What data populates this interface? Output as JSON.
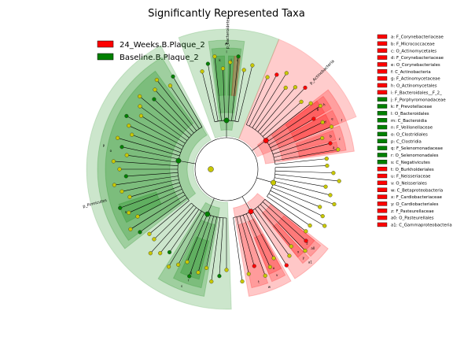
{
  "chart_data": {
    "type": "cladogram",
    "title": "Significantly Represented Taxa",
    "legend": {
      "placement": "top-left",
      "entries": [
        {
          "name": "24_Weeks.B.Plaque_2",
          "color": "#ff0000"
        },
        {
          "name": "Baseline.B.Plaque_2",
          "color": "#008000"
        }
      ]
    },
    "key": [
      {
        "label": "a: F_Corynebacteriaceae",
        "group": "24_Weeks.B.Plaque_2"
      },
      {
        "label": "b: F_Micrococcaceae",
        "group": "24_Weeks.B.Plaque_2"
      },
      {
        "label": "c: O_Actinomycetales",
        "group": "24_Weeks.B.Plaque_2"
      },
      {
        "label": "d: F_Corynebacteriaceae",
        "group": "24_Weeks.B.Plaque_2"
      },
      {
        "label": "e: O_Corynebacteriales",
        "group": "24_Weeks.B.Plaque_2"
      },
      {
        "label": "f: C_Actinobacteria",
        "group": "24_Weeks.B.Plaque_2"
      },
      {
        "label": "g: F_Actinomycetaceae",
        "group": "24_Weeks.B.Plaque_2"
      },
      {
        "label": "h: O_Actinomycetales",
        "group": "24_Weeks.B.Plaque_2"
      },
      {
        "label": "i: F_Bacteroidales__F_2_",
        "group": "24_Weeks.B.Plaque_2"
      },
      {
        "label": "j: F_Porphyromonadaceae",
        "group": "Baseline.B.Plaque_2"
      },
      {
        "label": "k: F_Prevotellaceae",
        "group": "Baseline.B.Plaque_2"
      },
      {
        "label": "l: O_Bacteroidales",
        "group": "Baseline.B.Plaque_2"
      },
      {
        "label": "m: C_Bacteroidia",
        "group": "Baseline.B.Plaque_2"
      },
      {
        "label": "n: F_Veillonellaceae",
        "group": "Baseline.B.Plaque_2"
      },
      {
        "label": "o: O_Clostridiales",
        "group": "Baseline.B.Plaque_2"
      },
      {
        "label": "p: C_Clostridia",
        "group": "Baseline.B.Plaque_2"
      },
      {
        "label": "q: F_Selenomonadaceae",
        "group": "Baseline.B.Plaque_2"
      },
      {
        "label": "r: O_Selenomonadales",
        "group": "Baseline.B.Plaque_2"
      },
      {
        "label": "s: C_Negativicutes",
        "group": "Baseline.B.Plaque_2"
      },
      {
        "label": "t: O_Burkholderiales",
        "group": "24_Weeks.B.Plaque_2"
      },
      {
        "label": "u: F_Neisseriaceae",
        "group": "24_Weeks.B.Plaque_2"
      },
      {
        "label": "v: O_Neisseriales",
        "group": "24_Weeks.B.Plaque_2"
      },
      {
        "label": "w: C_Betaproteobacteria",
        "group": "24_Weeks.B.Plaque_2"
      },
      {
        "label": "x: F_Cardiobacteriaceae",
        "group": "24_Weeks.B.Plaque_2"
      },
      {
        "label": "y: O_Cardiobacteriales",
        "group": "24_Weeks.B.Plaque_2"
      },
      {
        "label": "z: F_Pasteurellaceae",
        "group": "24_Weeks.B.Plaque_2"
      },
      {
        "label": "a0: O_Pasteurellales",
        "group": "24_Weeks.B.Plaque_2"
      },
      {
        "label": "a1: C_Gammaproteobacteria",
        "group": "24_Weeks.B.Plaque_2"
      }
    ],
    "phyla": [
      {
        "label": "p_Bacteroidetes",
        "group": "Baseline.B.Plaque_2",
        "start_deg": -20,
        "end_deg": 22
      },
      {
        "label": "p_Actinobacteria",
        "group": "24_Weeks.B.Plaque_2",
        "start_deg": 22,
        "end_deg": 68
      },
      {
        "label": "p_Firmicutes",
        "group": "Baseline.B.Plaque_2",
        "start_deg": 178,
        "end_deg": 332
      }
    ],
    "clades": [
      {
        "letter": "m",
        "group": "Baseline.B.Plaque_2",
        "start_deg": -8,
        "end_deg": 8,
        "level": 2
      },
      {
        "letter": "l",
        "group": "Baseline.B.Plaque_2",
        "start_deg": -7,
        "end_deg": 7,
        "level": 3
      },
      {
        "letter": "k",
        "group": "Baseline.B.Plaque_2",
        "start_deg": -6,
        "end_deg": -1,
        "level": 4
      },
      {
        "letter": "j",
        "group": "Baseline.B.Plaque_2",
        "start_deg": 1,
        "end_deg": 4,
        "level": 4
      },
      {
        "letter": "i",
        "group": "24_Weeks.B.Plaque_2",
        "start_deg": 4,
        "end_deg": 7,
        "level": 4
      },
      {
        "letter": "f",
        "group": "24_Weeks.B.Plaque_2",
        "start_deg": 52,
        "end_deg": 82,
        "level": 2
      },
      {
        "letter": "h",
        "group": "24_Weeks.B.Plaque_2",
        "start_deg": 53,
        "end_deg": 60,
        "level": 3
      },
      {
        "letter": "g",
        "group": "24_Weeks.B.Plaque_2",
        "start_deg": 53,
        "end_deg": 60,
        "level": 4
      },
      {
        "letter": "e",
        "group": "24_Weeks.B.Plaque_2",
        "start_deg": 61,
        "end_deg": 68,
        "level": 3
      },
      {
        "letter": "d",
        "group": "24_Weeks.B.Plaque_2",
        "start_deg": 61,
        "end_deg": 68,
        "level": 4
      },
      {
        "letter": "c",
        "group": "24_Weeks.B.Plaque_2",
        "start_deg": 69,
        "end_deg": 81,
        "level": 3
      },
      {
        "letter": "b",
        "group": "24_Weeks.B.Plaque_2",
        "start_deg": 70,
        "end_deg": 75,
        "level": 4
      },
      {
        "letter": "a",
        "group": "24_Weeks.B.Plaque_2",
        "start_deg": 76,
        "end_deg": 81,
        "level": 4
      },
      {
        "letter": "a1",
        "group": "24_Weeks.B.Plaque_2",
        "start_deg": 128,
        "end_deg": 148,
        "level": 2
      },
      {
        "letter": "a0",
        "group": "24_Weeks.B.Plaque_2",
        "start_deg": 129,
        "end_deg": 136,
        "level": 3
      },
      {
        "letter": "z",
        "group": "24_Weeks.B.Plaque_2",
        "start_deg": 129,
        "end_deg": 136,
        "level": 4
      },
      {
        "letter": "y",
        "group": "24_Weeks.B.Plaque_2",
        "start_deg": 137,
        "end_deg": 141,
        "level": 3
      },
      {
        "letter": "x",
        "group": "24_Weeks.B.Plaque_2",
        "start_deg": 137,
        "end_deg": 141,
        "level": 4
      },
      {
        "letter": "w",
        "group": "24_Weeks.B.Plaque_2",
        "start_deg": 150,
        "end_deg": 170,
        "level": 2
      },
      {
        "letter": "v",
        "group": "24_Weeks.B.Plaque_2",
        "start_deg": 151,
        "end_deg": 158,
        "level": 3
      },
      {
        "letter": "u",
        "group": "24_Weeks.B.Plaque_2",
        "start_deg": 151,
        "end_deg": 158,
        "level": 4
      },
      {
        "letter": "t",
        "group": "24_Weeks.B.Plaque_2",
        "start_deg": 160,
        "end_deg": 168,
        "level": 3
      },
      {
        "letter": "s",
        "group": "Baseline.B.Plaque_2",
        "start_deg": 190,
        "end_deg": 212,
        "level": 2
      },
      {
        "letter": "r",
        "group": "Baseline.B.Plaque_2",
        "start_deg": 192,
        "end_deg": 206,
        "level": 3
      },
      {
        "letter": "q",
        "group": "Baseline.B.Plaque_2",
        "start_deg": 194,
        "end_deg": 204,
        "level": 4
      },
      {
        "letter": "p",
        "group": "Baseline.B.Plaque_2",
        "start_deg": 232,
        "end_deg": 330,
        "level": 2
      },
      {
        "letter": "o",
        "group": "Baseline.B.Plaque_2",
        "start_deg": 234,
        "end_deg": 324,
        "level": 3
      },
      {
        "letter": "n",
        "group": "Baseline.B.Plaque_2",
        "start_deg": 242,
        "end_deg": 252,
        "level": 4
      }
    ]
  }
}
